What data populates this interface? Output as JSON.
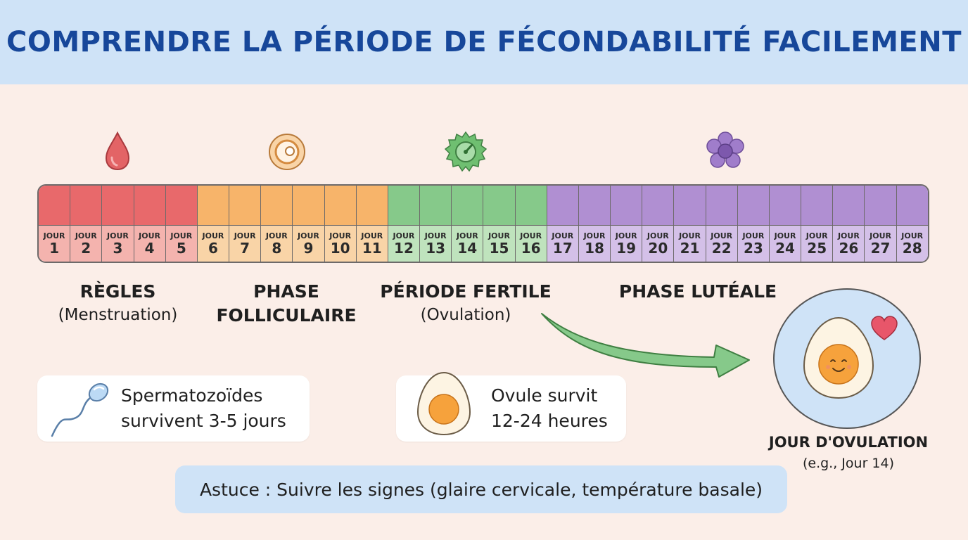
{
  "title": "COMPRENDRE LA PÉRIODE DE FÉCONDABILITÉ FACILEMENT",
  "colors": {
    "menstruation": "#e8696b",
    "menstruation_light": "#f4b3ae",
    "follicular": "#f7b46a",
    "follicular_light": "#f9d4a7",
    "fertile": "#86c98a",
    "fertile_light": "#bfe3bd",
    "luteal": "#b08fd2",
    "luteal_light": "#d4c0e8",
    "header_bg": "#cfe3f7",
    "title": "#17479a"
  },
  "day_word": "JOUR",
  "days": [
    {
      "n": "1",
      "phase": "menstruation"
    },
    {
      "n": "2",
      "phase": "menstruation"
    },
    {
      "n": "3",
      "phase": "menstruation"
    },
    {
      "n": "4",
      "phase": "menstruation"
    },
    {
      "n": "5",
      "phase": "menstruation"
    },
    {
      "n": "6",
      "phase": "follicular"
    },
    {
      "n": "7",
      "phase": "follicular"
    },
    {
      "n": "8",
      "phase": "follicular"
    },
    {
      "n": "9",
      "phase": "follicular"
    },
    {
      "n": "10",
      "phase": "follicular"
    },
    {
      "n": "11",
      "phase": "follicular"
    },
    {
      "n": "12",
      "phase": "fertile"
    },
    {
      "n": "13",
      "phase": "fertile"
    },
    {
      "n": "14",
      "phase": "fertile"
    },
    {
      "n": "15",
      "phase": "fertile"
    },
    {
      "n": "16",
      "phase": "fertile"
    },
    {
      "n": "17",
      "phase": "luteal"
    },
    {
      "n": "18",
      "phase": "luteal"
    },
    {
      "n": "19",
      "phase": "luteal"
    },
    {
      "n": "20",
      "phase": "luteal"
    },
    {
      "n": "21",
      "phase": "luteal"
    },
    {
      "n": "22",
      "phase": "luteal"
    },
    {
      "n": "23",
      "phase": "luteal"
    },
    {
      "n": "24",
      "phase": "luteal"
    },
    {
      "n": "25",
      "phase": "luteal"
    },
    {
      "n": "26",
      "phase": "luteal"
    },
    {
      "n": "27",
      "phase": "luteal"
    },
    {
      "n": "28",
      "phase": "luteal"
    }
  ],
  "phases": {
    "menstruation": {
      "title": "RÈGLES",
      "subtitle": "(Menstruation)",
      "icon": "blood-drop-icon"
    },
    "follicular": {
      "title": "PHASE",
      "subtitle": "FOLLICULAIRE",
      "icon": "follicle-icon"
    },
    "fertile": {
      "title": "PÉRIODE FERTILE",
      "subtitle": "(Ovulation)",
      "icon": "ovulation-burst-icon"
    },
    "luteal": {
      "title": "PHASE LUTÉALE",
      "icon": "flower-icon"
    }
  },
  "cards": {
    "sperm": {
      "line1": "Spermatozoïdes",
      "line2": "survivent 3-5 jours",
      "icon": "sperm-icon"
    },
    "ovule": {
      "line1": "Ovule survit",
      "line2": "12-24 heures",
      "icon": "egg-icon"
    }
  },
  "tip": "Astuce : Suivre les signes (glaire cervicale, température basale)",
  "ovulation_day": {
    "title": "JOUR D'OVULATION",
    "subtitle": "(e.g., Jour 14)",
    "icon": "smiling-egg-icon"
  }
}
